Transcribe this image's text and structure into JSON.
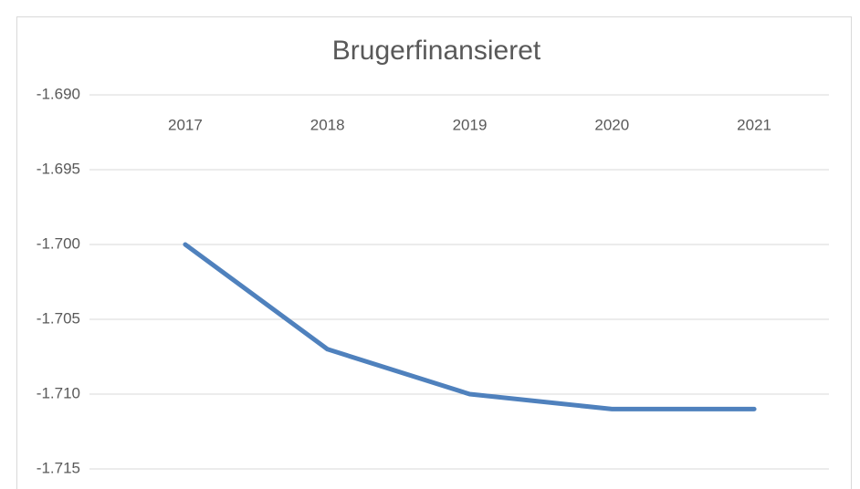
{
  "chart_data": {
    "type": "line",
    "title": "Brugerfinansieret",
    "categories": [
      "2017",
      "2018",
      "2019",
      "2020",
      "2021"
    ],
    "series": [
      {
        "name": "Brugerfinansieret",
        "color": "#4f81bd",
        "values": [
          -1700,
          -1707,
          -1710,
          -1711,
          -1711
        ]
      }
    ],
    "ylim": [
      -1715,
      -1690
    ],
    "yticks": [
      {
        "value": -1690,
        "label": "-1.690"
      },
      {
        "value": -1695,
        "label": "-1.695"
      },
      {
        "value": -1700,
        "label": "-1.700"
      },
      {
        "value": -1705,
        "label": "-1.705"
      },
      {
        "value": -1710,
        "label": "-1.710"
      },
      {
        "value": -1715,
        "label": "-1.715"
      }
    ],
    "grid": true
  }
}
